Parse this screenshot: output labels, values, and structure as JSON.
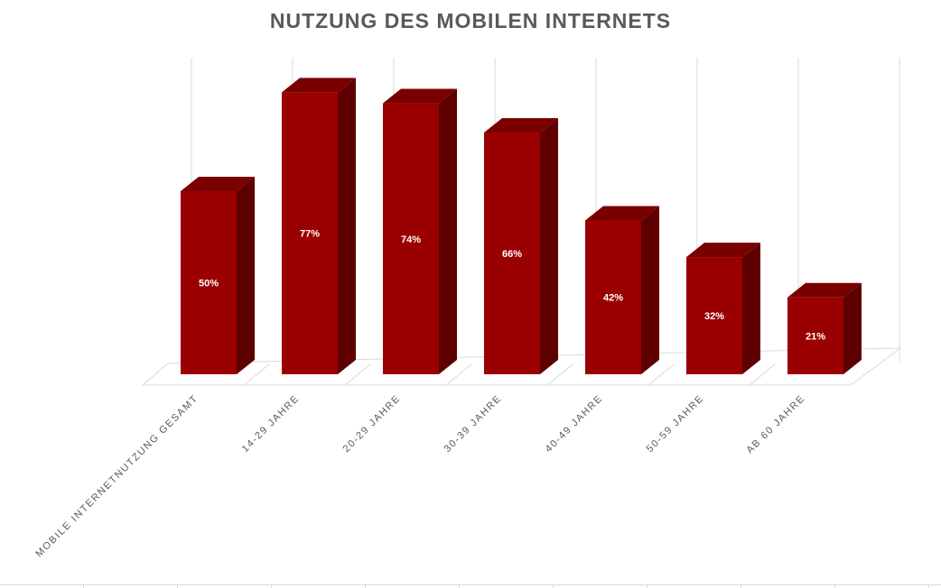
{
  "chart_data": {
    "type": "bar",
    "title": "NUTZUNG DES MOBILEN INTERNETS",
    "categories": [
      "MOBILE INTERNETNUTZUNG GESAMT",
      "14-29 JAHRE",
      "20-29 JAHRE",
      "30-39 JAHRE",
      "40-49 JAHRE",
      "50-59 JAHRE",
      "AB 60 JAHRE"
    ],
    "values": [
      50,
      77,
      74,
      66,
      42,
      32,
      21
    ],
    "data_labels": [
      "50%",
      "77%",
      "74%",
      "66%",
      "42%",
      "32%",
      "21%"
    ],
    "value_unit": "%",
    "ylim": [
      0,
      80
    ],
    "grid": true,
    "legend": "none",
    "style": "3d-column",
    "colors": {
      "bar_front": "#9b0000",
      "bar_side": "#5e0000",
      "bar_top": "#7a0000",
      "grid": "#d9d9d9",
      "title": "#595959",
      "tick_label": "#595959",
      "data_label": "#ffffff"
    }
  }
}
